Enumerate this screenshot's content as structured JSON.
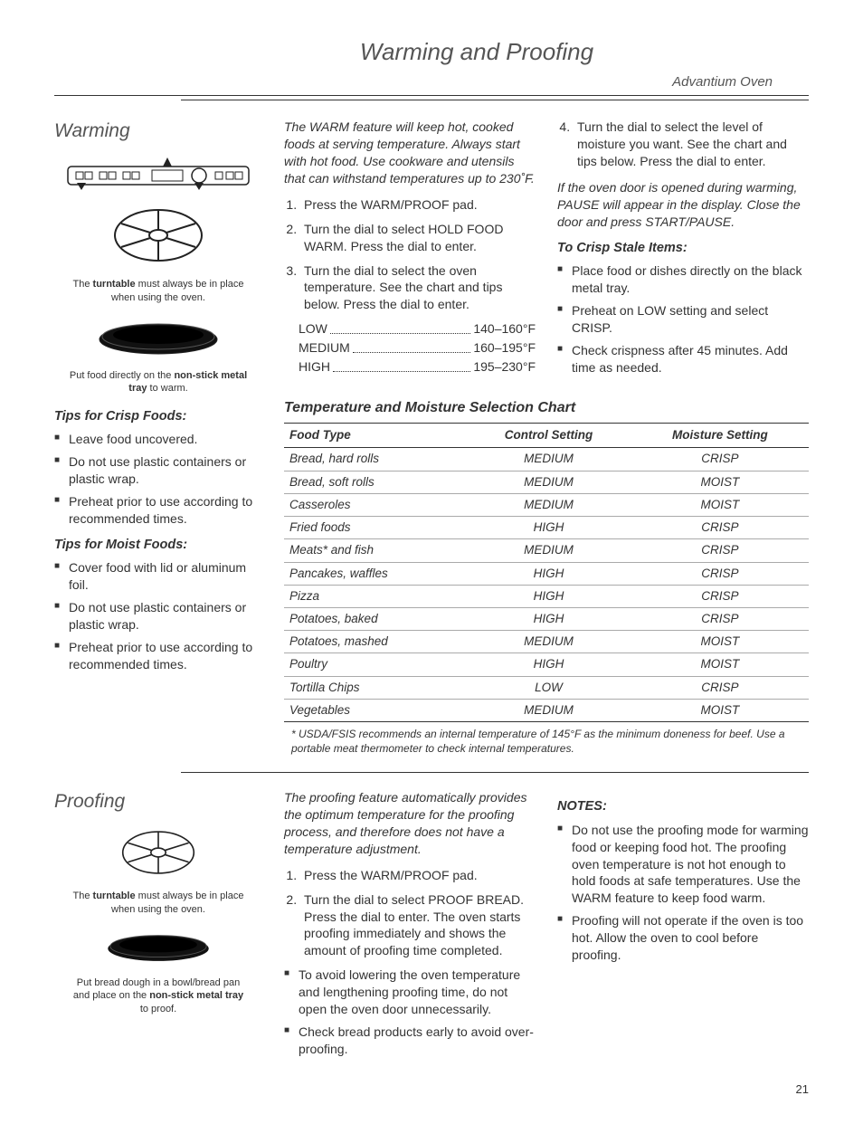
{
  "page": {
    "title": "Warming and Proofing",
    "subtitle": "Advantium Oven",
    "number": "21"
  },
  "warming": {
    "heading": "Warming",
    "turntable_caption_pre": "The ",
    "turntable_caption_bold": "turntable",
    "turntable_caption_post": " must always be in place when using the oven.",
    "tray_caption_pre": "Put food directly on the ",
    "tray_caption_bold": "non-stick metal tray",
    "tray_caption_post": " to warm.",
    "crisp_tips_heading": "Tips for Crisp Foods:",
    "crisp_tips": [
      "Leave food uncovered.",
      "Do not use plastic containers or plastic wrap.",
      "Preheat prior to use according to recommended times."
    ],
    "moist_tips_heading": "Tips for Moist Foods:",
    "moist_tips": [
      "Cover food with lid or aluminum foil.",
      "Do not use plastic containers or plastic wrap.",
      "Preheat prior to use according to recommended times."
    ],
    "intro": "The WARM feature will keep hot, cooked foods at serving temperature. Always start with hot food. Use cookware and utensils that can withstand temperatures up to 230˚F.",
    "steps": [
      "Press the WARM/PROOF pad.",
      "Turn the dial to select HOLD FOOD WARM. Press the dial to enter.",
      "Turn the dial to select the oven temperature. See the chart and tips below. Press the dial to enter."
    ],
    "temps": [
      {
        "label": "LOW",
        "range": "140–160°F"
      },
      {
        "label": "MEDIUM",
        "range": "160–195°F"
      },
      {
        "label": "HIGH",
        "range": "195–230°F"
      }
    ],
    "step4": "Turn the dial to select the level of moisture you want. See the chart and tips below. Press the dial to enter.",
    "door_note": "If the oven door is opened during warming, PAUSE will appear in the display. Close the door and press START/PAUSE.",
    "stale_heading": "To Crisp Stale Items:",
    "stale_items": [
      "Place food or dishes directly on the black metal tray.",
      "Preheat on LOW setting and select CRISP.",
      "Check crispness after 45 minutes. Add time as needed."
    ]
  },
  "chart": {
    "title": "Temperature and Moisture Selection Chart",
    "headers": [
      "Food Type",
      "Control Setting",
      "Moisture Setting"
    ],
    "rows": [
      [
        "Bread, hard rolls",
        "MEDIUM",
        "CRISP"
      ],
      [
        "Bread, soft rolls",
        "MEDIUM",
        "MOIST"
      ],
      [
        "Casseroles",
        "MEDIUM",
        "MOIST"
      ],
      [
        "Fried foods",
        "HIGH",
        "CRISP"
      ],
      [
        "Meats* and fish",
        "MEDIUM",
        "CRISP"
      ],
      [
        "Pancakes, waffles",
        "HIGH",
        "CRISP"
      ],
      [
        "Pizza",
        "HIGH",
        "CRISP"
      ],
      [
        "Potatoes, baked",
        "HIGH",
        "CRISP"
      ],
      [
        "Potatoes, mashed",
        "MEDIUM",
        "MOIST"
      ],
      [
        "Poultry",
        "HIGH",
        "MOIST"
      ],
      [
        "Tortilla Chips",
        "LOW",
        "CRISP"
      ],
      [
        "Vegetables",
        "MEDIUM",
        "MOIST"
      ]
    ],
    "footnote": "* USDA/FSIS recommends an internal temperature of 145°F as the minimum doneness for beef. Use a portable meat thermometer to check internal temperatures."
  },
  "proofing": {
    "heading": "Proofing",
    "turntable_caption_pre": "The ",
    "turntable_caption_bold": "turntable",
    "turntable_caption_post": " must always be in place when using the oven.",
    "tray_caption_pre": "Put bread dough in a bowl/bread pan and place on the ",
    "tray_caption_bold": "non-stick metal tray",
    "tray_caption_post": " to proof.",
    "intro": "The proofing feature automatically provides the optimum temperature for the proofing process, and therefore does not have a temperature adjustment.",
    "steps": [
      "Press the WARM/PROOF pad.",
      "Turn the dial to select PROOF BREAD. Press the dial to enter. The oven starts proofing immediately and shows the amount of proofing time completed."
    ],
    "bullets": [
      "To avoid lowering the oven temperature and lengthening proofing time, do not open the oven door unnecessarily.",
      "Check bread products early to avoid over-proofing."
    ],
    "notes_heading": "NOTES:",
    "notes": [
      "Do not use the proofing mode for warming food or keeping food hot. The proofing oven temperature is not hot enough to hold foods at safe temperatures. Use the WARM feature to keep food warm.",
      "Proofing will not operate if the oven is too hot. Allow the oven to cool before proofing."
    ]
  }
}
